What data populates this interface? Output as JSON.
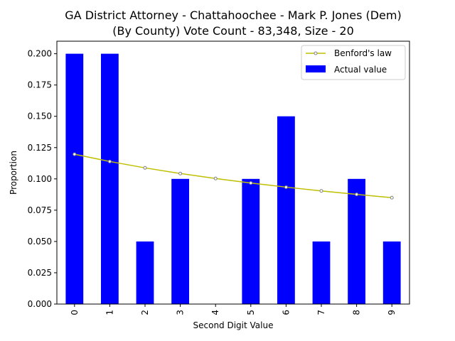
{
  "chart_data": {
    "type": "bar",
    "title_line1": "GA District Attorney - Chattahoochee - Mark P. Jones (Dem)",
    "title_line2": "(By County) Vote Count - 83,348, Size - 20",
    "xlabel": "Second Digit Value",
    "ylabel": "Proportion",
    "categories": [
      "0",
      "1",
      "2",
      "3",
      "4",
      "5",
      "6",
      "7",
      "8",
      "9"
    ],
    "ylim": [
      0,
      0.21
    ],
    "yticks": [
      0.0,
      0.025,
      0.05,
      0.075,
      0.1,
      0.125,
      0.15,
      0.175,
      0.2
    ],
    "ytick_labels": [
      "0.000",
      "0.025",
      "0.050",
      "0.075",
      "0.100",
      "0.125",
      "0.150",
      "0.175",
      "0.200"
    ],
    "legend_position": "top-right",
    "grid": false,
    "series": [
      {
        "name": "Actual value",
        "kind": "bar",
        "color": "#0000ff",
        "values": [
          0.2,
          0.2,
          0.05,
          0.1,
          0.0,
          0.1,
          0.15,
          0.05,
          0.1,
          0.05
        ]
      },
      {
        "name": "Benford's law",
        "kind": "line",
        "color": "#bfbf00",
        "marker_color": "#808080",
        "values": [
          0.1197,
          0.1139,
          0.1088,
          0.1043,
          0.1003,
          0.0967,
          0.0934,
          0.0904,
          0.0876,
          0.085
        ]
      }
    ]
  }
}
